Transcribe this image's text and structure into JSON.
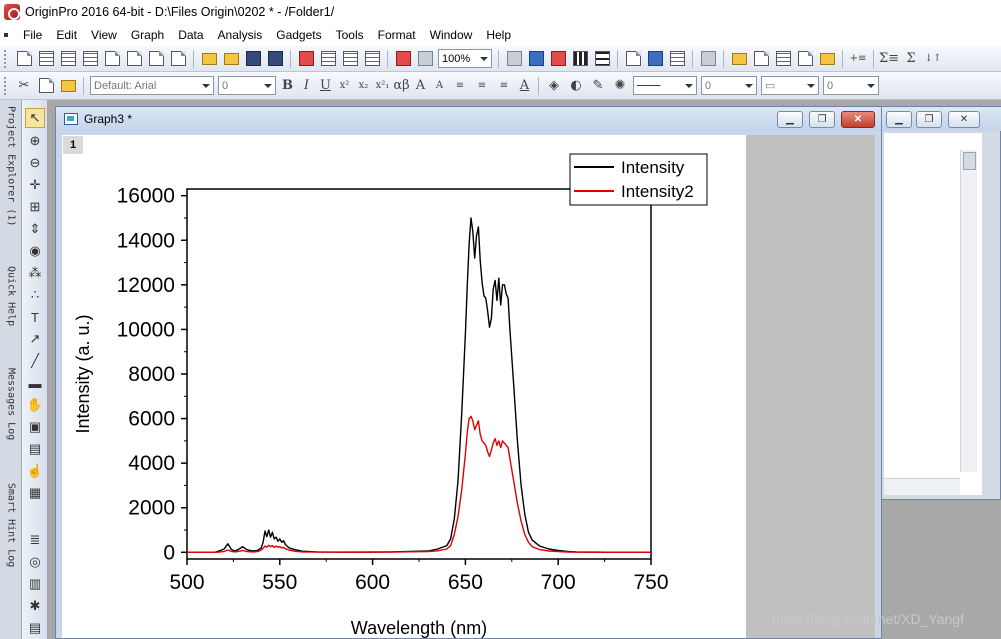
{
  "window": {
    "title": "OriginPro 2016 64-bit - D:\\Files Origin\\0202 * - /Folder1/"
  },
  "menu": [
    "File",
    "Edit",
    "View",
    "Graph",
    "Data",
    "Analysis",
    "Gadgets",
    "Tools",
    "Format",
    "Window",
    "Help"
  ],
  "toolbar": {
    "zoom": "100%",
    "font": "Default: Arial",
    "font_size": "0",
    "line_width": "0",
    "line_width2": "0",
    "format_glyphs": [
      "B",
      "I",
      "U",
      "x²",
      "x₂",
      "x²₁",
      "αβ",
      "A",
      "A",
      "A"
    ]
  },
  "dock_tabs": [
    "Project Explorer (1)",
    "Quick Help",
    "Messages Log",
    "Smart Hint Log"
  ],
  "graph_window": {
    "title": "Graph3 *",
    "layer": "1"
  },
  "watermark": "https://blog.csdn.net/XD_Yangf",
  "colors": {
    "series1": "#000000",
    "series2": "#e00000"
  },
  "chart_data": {
    "type": "line",
    "xlabel": "Wavelength (nm)",
    "ylabel": "Intensity (a. u.)",
    "xlim": [
      500,
      750
    ],
    "ylim": [
      -300,
      16300
    ],
    "xticks": [
      500,
      550,
      600,
      650,
      700,
      750
    ],
    "yticks": [
      0,
      2000,
      4000,
      6000,
      8000,
      10000,
      12000,
      14000,
      16000
    ],
    "legend": "top-right",
    "series": [
      {
        "name": "Intensity",
        "x": [
          500,
          510,
          515,
          518,
          520,
          522,
          524,
          526,
          528,
          530,
          532,
          534,
          536,
          538,
          540,
          541,
          542,
          543,
          544,
          545,
          546,
          547,
          548,
          549,
          550,
          551,
          552,
          553,
          555,
          558,
          562,
          570,
          590,
          610,
          630,
          635,
          640,
          642,
          644,
          646,
          648,
          650,
          651,
          652,
          653,
          654,
          655,
          656,
          657,
          658,
          659,
          660,
          661,
          662,
          663,
          664,
          665,
          666,
          667,
          668,
          669,
          670,
          671,
          672,
          673,
          674,
          676,
          678,
          680,
          682,
          684,
          686,
          690,
          695,
          700,
          705,
          710,
          720,
          730,
          740,
          750
        ],
        "y": [
          0,
          0,
          0,
          80,
          150,
          380,
          120,
          60,
          150,
          250,
          130,
          80,
          60,
          80,
          200,
          450,
          950,
          700,
          1000,
          680,
          900,
          600,
          680,
          500,
          600,
          450,
          520,
          350,
          200,
          120,
          50,
          20,
          10,
          20,
          60,
          150,
          300,
          600,
          1500,
          3200,
          6200,
          9800,
          12000,
          13800,
          15000,
          14400,
          13200,
          14200,
          14600,
          13100,
          12100,
          11500,
          11400,
          10800,
          10100,
          10500,
          11800,
          12200,
          11300,
          12300,
          11100,
          12000,
          12000,
          11600,
          11400,
          10000,
          7500,
          5000,
          3000,
          1700,
          900,
          550,
          280,
          150,
          80,
          40,
          20,
          10,
          0,
          0,
          0
        ]
      },
      {
        "name": "Intensity2",
        "x": [
          500,
          510,
          515,
          518,
          520,
          522,
          524,
          526,
          528,
          530,
          532,
          534,
          536,
          538,
          540,
          541,
          542,
          543,
          544,
          545,
          546,
          547,
          548,
          549,
          550,
          551,
          552,
          553,
          555,
          558,
          562,
          570,
          590,
          610,
          630,
          635,
          640,
          642,
          644,
          646,
          648,
          650,
          651,
          652,
          653,
          654,
          655,
          656,
          657,
          658,
          659,
          660,
          661,
          662,
          663,
          664,
          665,
          666,
          667,
          668,
          669,
          670,
          671,
          672,
          673,
          674,
          676,
          678,
          680,
          682,
          684,
          686,
          690,
          695,
          700,
          705,
          710,
          720,
          730,
          740,
          750
        ],
        "y": [
          0,
          0,
          0,
          20,
          40,
          100,
          40,
          20,
          50,
          80,
          40,
          25,
          20,
          30,
          100,
          180,
          280,
          230,
          320,
          250,
          300,
          220,
          280,
          230,
          260,
          200,
          220,
          160,
          100,
          50,
          20,
          10,
          0,
          10,
          30,
          70,
          150,
          300,
          800,
          1600,
          2800,
          4400,
          5400,
          6000,
          6100,
          5900,
          5500,
          5700,
          5900,
          5300,
          5000,
          4900,
          4800,
          4500,
          4300,
          4600,
          4900,
          5100,
          4800,
          5000,
          4700,
          5000,
          4900,
          4800,
          4700,
          4200,
          3200,
          2200,
          1400,
          800,
          450,
          250,
          120,
          60,
          30,
          15,
          5,
          0,
          0,
          0,
          0
        ]
      }
    ]
  }
}
